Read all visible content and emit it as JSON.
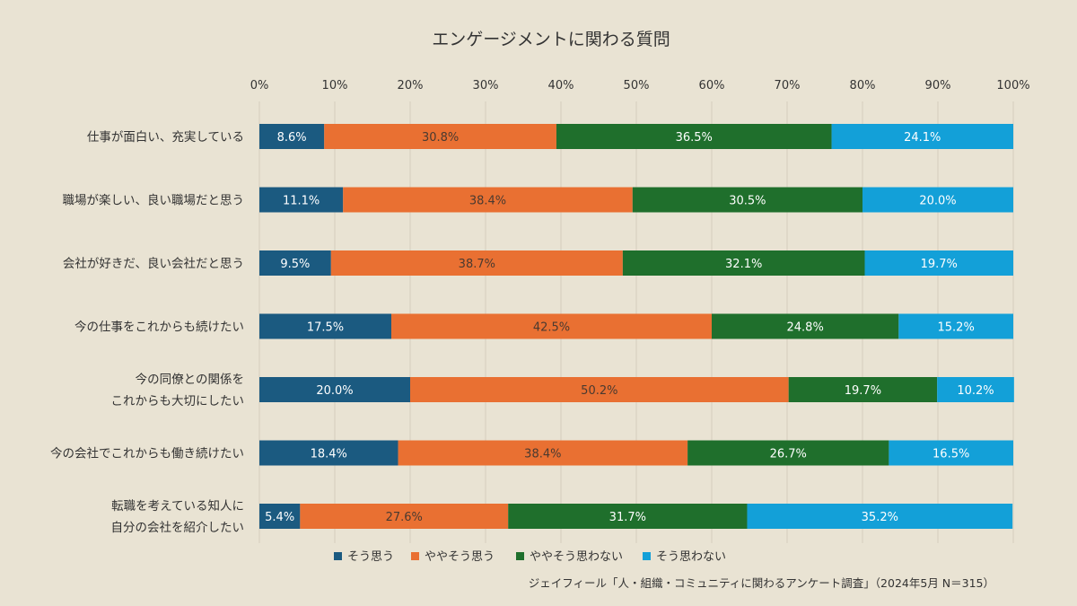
{
  "chart_data": {
    "type": "bar",
    "orientation": "horizontal",
    "stacked": true,
    "title": "エンゲージメントに関わる質問",
    "xlim": [
      0,
      100
    ],
    "x_ticks": [
      "0%",
      "10%",
      "20%",
      "30%",
      "40%",
      "50%",
      "60%",
      "70%",
      "80%",
      "90%",
      "100%"
    ],
    "grid": true,
    "legend_position": "bottom",
    "categories": [
      [
        "仕事が面白い、充実している"
      ],
      [
        "職場が楽しい、良い職場だと思う"
      ],
      [
        "会社が好きだ、良い会社だと思う"
      ],
      [
        "今の仕事をこれからも続けたい"
      ],
      [
        "今の同僚との関係を",
        "これからも大切にしたい"
      ],
      [
        "今の会社でこれからも働き続けたい"
      ],
      [
        "転職を考えている知人に",
        "自分の会社を紹介したい"
      ]
    ],
    "series": [
      {
        "name": "そう思う",
        "color": "#1b5a80",
        "label_color": "#ffffff",
        "values": [
          8.6,
          11.1,
          9.5,
          17.5,
          20.0,
          18.4,
          5.4
        ]
      },
      {
        "name": "ややそう思う",
        "color": "#e97032",
        "label_color": "#4a3a30",
        "values": [
          30.8,
          38.4,
          38.7,
          42.5,
          50.2,
          38.4,
          27.6
        ]
      },
      {
        "name": "ややそう思わない",
        "color": "#1f6f2c",
        "label_color": "#ffffff",
        "values": [
          36.5,
          30.5,
          32.1,
          24.8,
          19.7,
          26.7,
          31.7
        ]
      },
      {
        "name": "そう思わない",
        "color": "#13a0d8",
        "label_color": "#ffffff",
        "values": [
          24.1,
          20.0,
          19.7,
          15.2,
          10.2,
          16.5,
          35.2
        ]
      }
    ],
    "source": "ジェイフィール「人・組織・コミュニティに関わるアンケート調査」（2024年5月 N＝315）"
  }
}
